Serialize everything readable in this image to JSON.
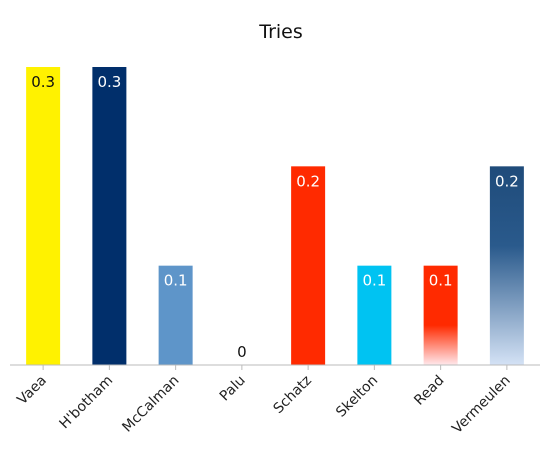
{
  "chart_data": {
    "type": "bar",
    "title": "Tries",
    "categories": [
      "Vaea",
      "H'botham",
      "McCalman",
      "Palu",
      "Schatz",
      "Skelton",
      "Read",
      "Vermeulen"
    ],
    "values": [
      0.3,
      0.3,
      0.1,
      0,
      0.2,
      0.1,
      0.1,
      0.2
    ],
    "value_labels": [
      "0.3",
      "0.3",
      "0.1",
      "0",
      "0.2",
      "0.1",
      "0.1",
      "0.2"
    ],
    "ylim": [
      0,
      0.3
    ],
    "grid": false,
    "legend": "none",
    "colors": [
      "#FFF200",
      "#012F6B",
      "#5E95C9",
      "#5E95C9",
      "#FF2A00",
      "#00C3F2",
      "#FF2A00",
      "#1F4B7A"
    ],
    "fills": [
      "solid",
      "solid",
      "solid",
      "solid",
      "solid",
      "solid",
      "fade-bottom-pink",
      "fade-bottom-light"
    ],
    "label_colors": [
      "#111111",
      "#ffffff",
      "#ffffff",
      "#111111",
      "#ffffff",
      "#ffffff",
      "#ffffff",
      "#ffffff"
    ]
  }
}
